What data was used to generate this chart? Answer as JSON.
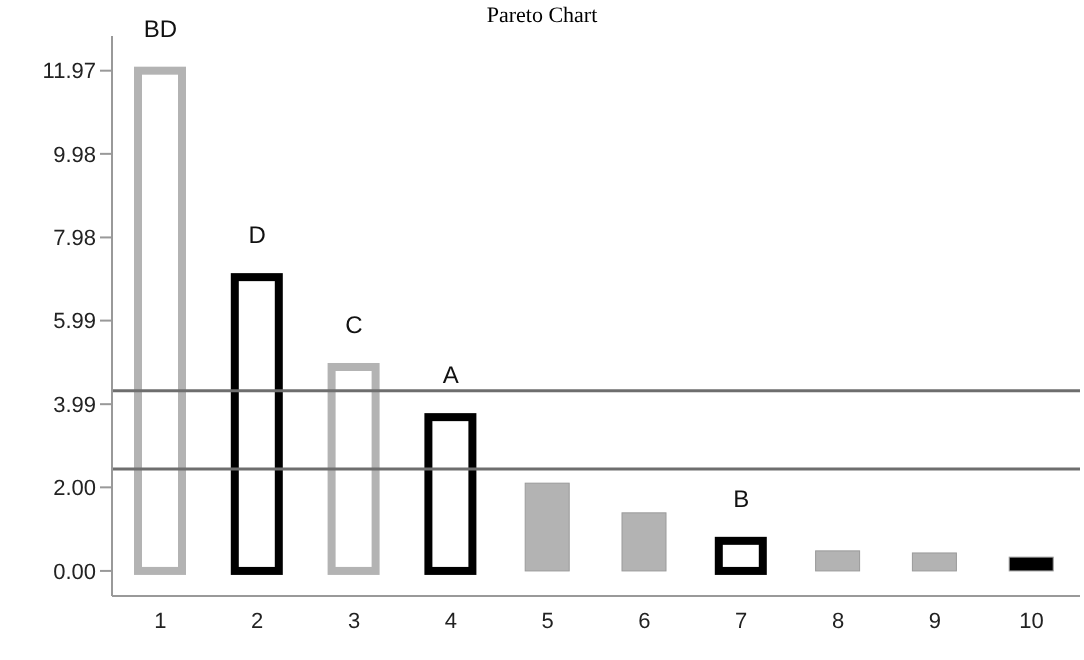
{
  "chart_data": {
    "type": "bar",
    "title": "Pareto Chart",
    "categories": [
      "1",
      "2",
      "3",
      "4",
      "5",
      "6",
      "7",
      "8",
      "9",
      "10"
    ],
    "values": [
      11.97,
      7.03,
      4.88,
      3.68,
      2.1,
      1.39,
      0.72,
      0.48,
      0.43,
      0.33
    ],
    "colors": [
      "#b3b3b3",
      "#000000",
      "#b3b3b3",
      "#000000",
      "#b3b3b3",
      "#b3b3b3",
      "#000000",
      "#b3b3b3",
      "#b3b3b3",
      "#000000"
    ],
    "ylim": [
      -0.6,
      12.8
    ],
    "yticks": [
      {
        "value": 0,
        "label": "0.00"
      },
      {
        "value": 2,
        "label": "2.00"
      },
      {
        "value": 3.99,
        "label": "3.99"
      },
      {
        "value": 5.99,
        "label": "5.99"
      },
      {
        "value": 7.98,
        "label": "7.98"
      },
      {
        "value": 9.98,
        "label": "9.98"
      },
      {
        "value": 11.97,
        "label": "11.97"
      }
    ],
    "ref_lines": [
      {
        "axis": "y",
        "value": 4.31,
        "color": "#6e6e6e"
      },
      {
        "axis": "y",
        "value": 2.44,
        "color": "#6e6e6e"
      }
    ],
    "annotations": [
      {
        "text": "BD",
        "x": "1",
        "y": 11.97
      },
      {
        "text": "D",
        "x": "2",
        "y": 7.03
      },
      {
        "text": "C",
        "x": "3",
        "y": 4.88
      },
      {
        "text": "A",
        "x": "4",
        "y": 3.68
      },
      {
        "text": "B",
        "x": "7",
        "y": 0.72
      }
    ],
    "grid": false,
    "legend": false
  }
}
